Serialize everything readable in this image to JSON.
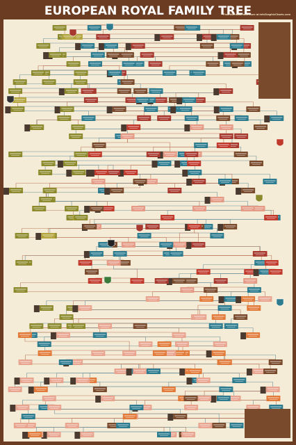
{
  "header": {
    "title": "EUROPEAN ROYAL FAMILY TREE",
    "tagline": "Find this chart and more at InfoGraphicCharts.com"
  }
}
